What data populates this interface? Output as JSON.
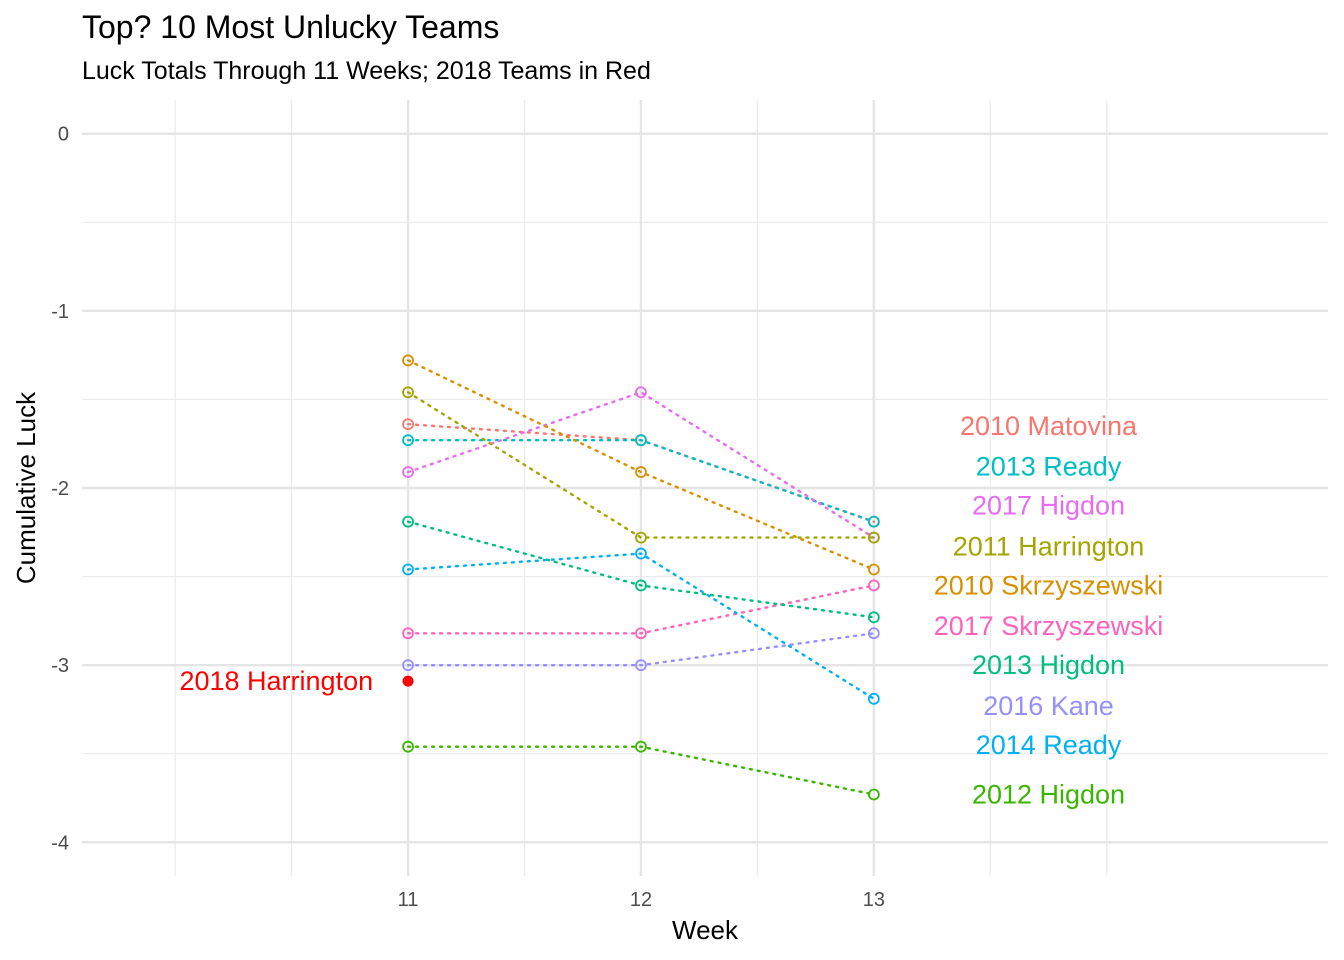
{
  "chart_data": {
    "type": "line",
    "title": "Top? 10 Most Unlucky Teams",
    "subtitle": "Luck Totals Through 11 Weeks; 2018 Teams in Red",
    "xlabel": "Week",
    "ylabel": "Cumulative Luck",
    "xlim": [
      9.6,
      14.95
    ],
    "ylim": [
      -4.19,
      0.19
    ],
    "x_ticks": [
      11,
      12,
      13
    ],
    "y_ticks": [
      0,
      -1,
      -2,
      -3,
      -4
    ],
    "x_ticks_minor": [
      10,
      10.5,
      11.5,
      12.5,
      13.5,
      14
    ],
    "y_ticks_minor": [
      -0.5,
      -1.5,
      -2.5,
      -3.5
    ],
    "grid": true,
    "legend": "none",
    "series": [
      {
        "name": "2010 Matovina",
        "color": "#F8766D",
        "x": [
          11,
          12,
          13
        ],
        "values": [
          -1.64,
          -1.73,
          -2.19
        ],
        "label_x": 13.75,
        "label_y": -1.65
      },
      {
        "name": "2013 Ready",
        "color": "#00BFC4",
        "x": [
          11,
          12,
          13
        ],
        "values": [
          -1.73,
          -1.73,
          -2.19
        ],
        "label_x": 13.75,
        "label_y": -1.88
      },
      {
        "name": "2017 Higdon",
        "color": "#E76BF3",
        "x": [
          11,
          12,
          13
        ],
        "values": [
          -1.91,
          -1.46,
          -2.28
        ],
        "label_x": 13.75,
        "label_y": -2.1
      },
      {
        "name": "2011 Harrington",
        "color": "#A3A500",
        "x": [
          11,
          12,
          13
        ],
        "values": [
          -1.46,
          -2.28,
          -2.28
        ],
        "label_x": 13.75,
        "label_y": -2.33
      },
      {
        "name": "2010 Skrzyszewski",
        "color": "#D89000",
        "x": [
          11,
          12,
          13
        ],
        "values": [
          -1.28,
          -1.91,
          -2.46
        ],
        "label_x": 13.75,
        "label_y": -2.55
      },
      {
        "name": "2017 Skrzyszewski",
        "color": "#FF62BC",
        "x": [
          11,
          12,
          13
        ],
        "values": [
          -2.82,
          -2.82,
          -2.55
        ],
        "label_x": 13.75,
        "label_y": -2.78
      },
      {
        "name": "2013 Higdon",
        "color": "#00BF7D",
        "x": [
          11,
          12,
          13
        ],
        "values": [
          -2.19,
          -2.55,
          -2.73
        ],
        "label_x": 13.75,
        "label_y": -3.0
      },
      {
        "name": "2016 Kane",
        "color": "#9590FF",
        "x": [
          11,
          12,
          13
        ],
        "values": [
          -3.0,
          -3.0,
          -2.82
        ],
        "label_x": 13.75,
        "label_y": -3.23
      },
      {
        "name": "2014 Ready",
        "color": "#00B0F6",
        "x": [
          11,
          12,
          13
        ],
        "values": [
          -2.46,
          -2.37,
          -3.19
        ],
        "label_x": 13.75,
        "label_y": -3.45
      },
      {
        "name": "2012 Higdon",
        "color": "#39B600",
        "x": [
          11,
          12,
          13
        ],
        "values": [
          -3.46,
          -3.46,
          -3.73
        ],
        "label_x": 13.75,
        "label_y": -3.73
      }
    ],
    "highlight": {
      "name": "2018 Harrington",
      "color": "#FF0000",
      "x": 11,
      "y": -3.09,
      "label_x": 10.85,
      "label_y": -3.09
    }
  }
}
